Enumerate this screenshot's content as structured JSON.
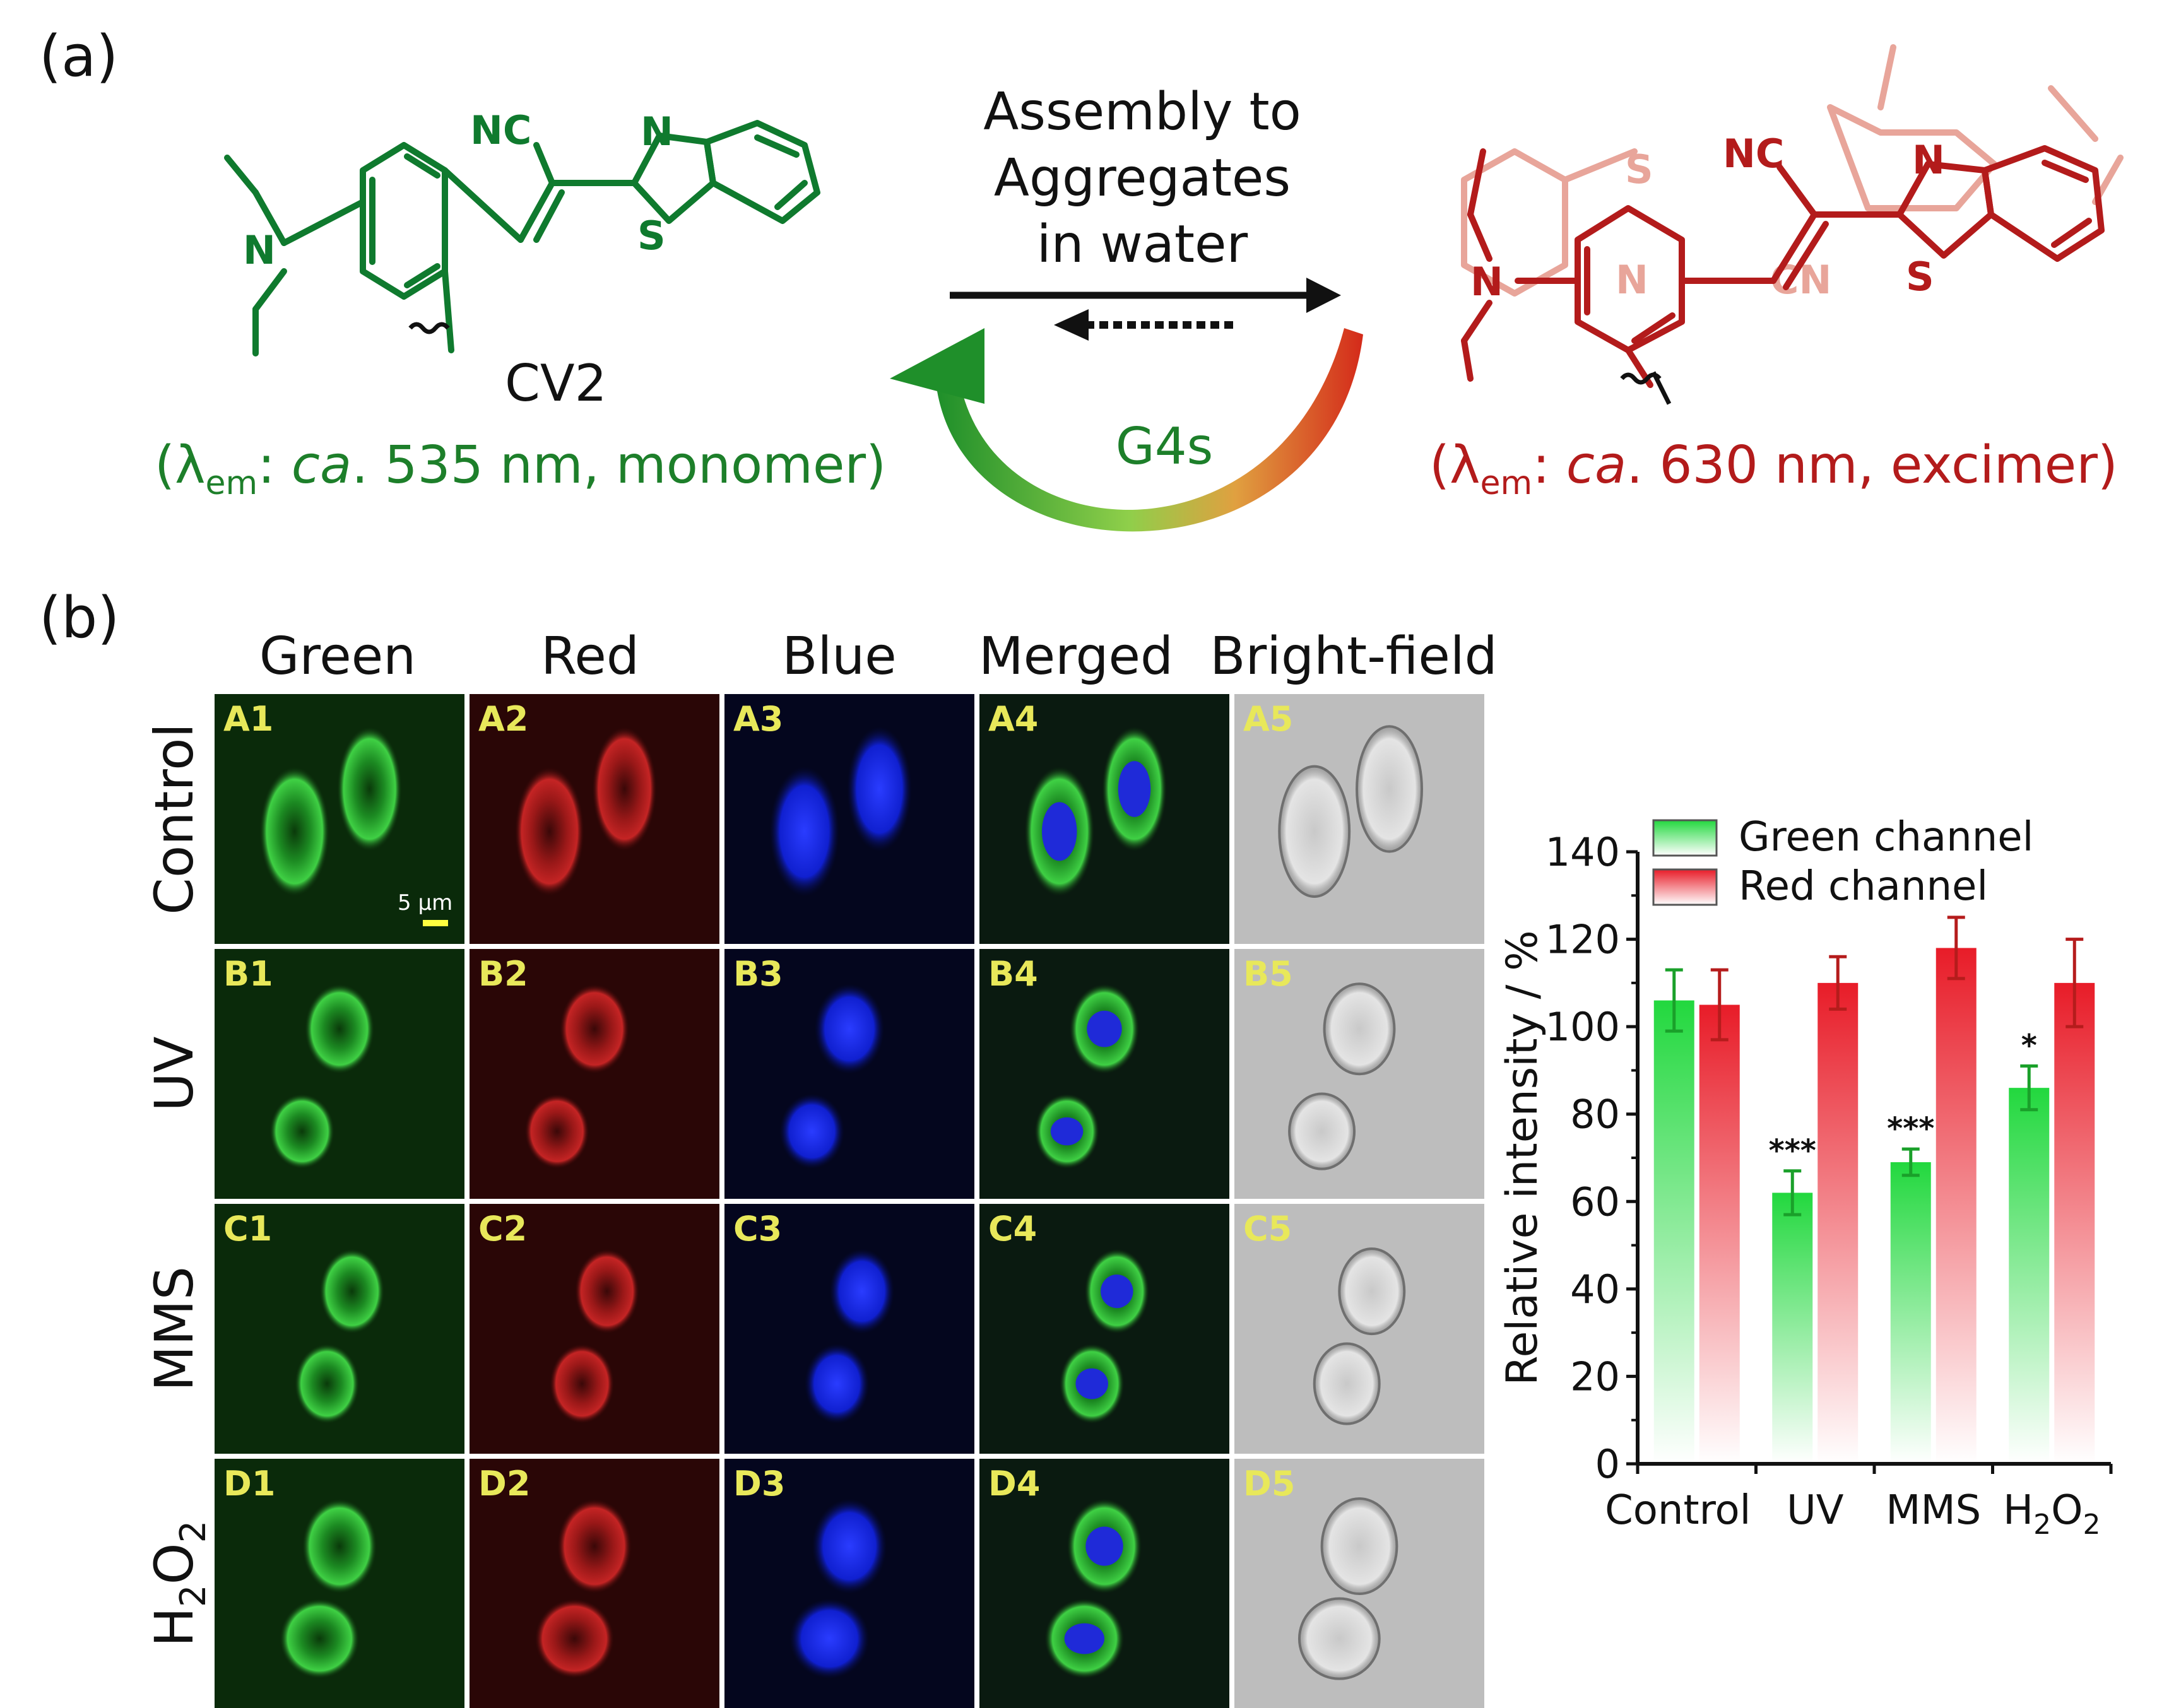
{
  "panel_a": {
    "label": "(a)",
    "left_molecule": {
      "nc": "NC",
      "n_ring": "N",
      "s_ring": "S",
      "n_amine": "N",
      "name": "CV2"
    },
    "left_caption": {
      "open": "(λ",
      "sub": "em",
      "colon": ": ",
      "ca": "ca",
      "rest": ". 535 nm, monomer)"
    },
    "process": {
      "line1": "Assembly to",
      "line2": "Aggregates",
      "line3": "in water",
      "g4s": "G4s"
    },
    "right_molecule": {
      "nc": "NC",
      "n_ring": "N",
      "s_ring": "S",
      "n_amine": "N",
      "cn": "CN",
      "ghost_n": "N",
      "ghost_s": "S"
    },
    "right_caption": {
      "open": "(λ",
      "sub": "em",
      "colon": ": ",
      "ca": "ca",
      "rest": ". 630 nm, excimer)"
    },
    "colors": {
      "green": "#0f7a2e",
      "red": "#b31b1b"
    }
  },
  "panel_b": {
    "label": "(b)",
    "columns": [
      "Green",
      "Red",
      "Blue",
      "Merged",
      "Bright-field"
    ],
    "rows": [
      {
        "label": "Control",
        "cells": [
          "A1",
          "A2",
          "A3",
          "A4",
          "A5"
        ]
      },
      {
        "label": "UV",
        "cells": [
          "B1",
          "B2",
          "B3",
          "B4",
          "B5"
        ]
      },
      {
        "label": "MMS",
        "cells": [
          "C1",
          "C2",
          "C3",
          "C4",
          "C5"
        ]
      },
      {
        "label": "H",
        "label_sub": "2",
        "label_mid": "O",
        "label_sub2": "2",
        "cells": [
          "D1",
          "D2",
          "D3",
          "D4",
          "D5"
        ]
      }
    ],
    "scale_bar": "5 μm"
  },
  "chart_data": {
    "type": "bar",
    "categories": [
      "Control",
      "UV",
      "MMS",
      "H2O2"
    ],
    "category_labels": [
      {
        "main": "Control"
      },
      {
        "main": "UV"
      },
      {
        "main": "MMS"
      },
      {
        "main": "H",
        "sub": "2",
        "mid": "O",
        "sub2": "2"
      }
    ],
    "series": [
      {
        "name": "Green channel",
        "color": "#2ee04a",
        "values": [
          106,
          62,
          69,
          86
        ],
        "errors": [
          7,
          5,
          3,
          5
        ],
        "significance": [
          "",
          "***",
          "***",
          "*"
        ]
      },
      {
        "name": "Red channel",
        "color": "#e8242e",
        "values": [
          105,
          110,
          118,
          110
        ],
        "errors": [
          8,
          6,
          7,
          10
        ],
        "significance": [
          "",
          "",
          "",
          ""
        ]
      }
    ],
    "ylabel": "Relative intensity / %",
    "ylim": [
      0,
      140
    ],
    "yticks": [
      0,
      20,
      40,
      60,
      80,
      100,
      120,
      140
    ],
    "legend_position": "top"
  }
}
